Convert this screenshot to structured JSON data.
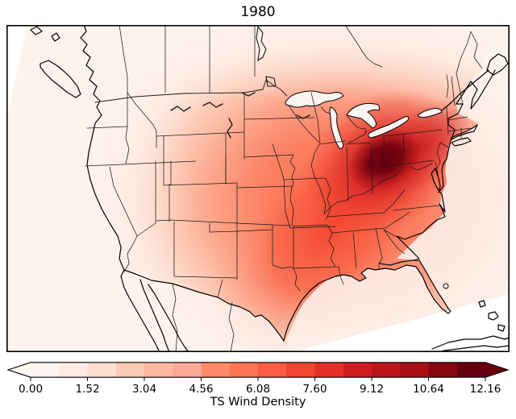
{
  "figure": {
    "title": "1980",
    "background": "#ffffff"
  },
  "colorbar": {
    "label": "TS Wind Density",
    "orientation": "horizontal",
    "extend": "both",
    "tick_labels": [
      "0.00",
      "1.52",
      "3.04",
      "4.56",
      "6.08",
      "7.60",
      "9.12",
      "10.64",
      "12.16"
    ],
    "under_color": "#fff5f0",
    "over_color": "#67000d",
    "segment_colors": [
      "#fff5f0",
      "#ffeae0",
      "#fedecf",
      "#fdcab5",
      "#fcb79f",
      "#fca896",
      "#fc8a6a",
      "#fb7555",
      "#f85d42",
      "#f14432",
      "#e32f27",
      "#d01d1f",
      "#bc141a",
      "#a81016",
      "#880811",
      "#67000d"
    ]
  },
  "chart_data": {
    "type": "heatmap",
    "subtype": "filled-contour-map",
    "title": "1980",
    "colorbar_label": "TS Wind Density",
    "colormap": "Reds",
    "extend": "both",
    "levels": {
      "min": 0.0,
      "max": 12.16,
      "step": 0.76,
      "bands": 16
    },
    "colorbar_ticks": [
      0.0,
      1.52,
      3.04,
      4.56,
      6.08,
      7.6,
      9.12,
      10.64,
      12.16
    ],
    "geography": "Contiguous United States with state boundaries, southern Canada, northern Mexico, Great Lakes, Cuba and Bahamas; conic projection",
    "peak": {
      "region": "Ohio near Lake Erie",
      "approx_density": 12.0
    },
    "regions": [
      {
        "region": "Ohio / Lake Erie shore (peak)",
        "approx_density": 12.0
      },
      {
        "region": "Western Pennsylvania",
        "approx_density": 10.5
      },
      {
        "region": "Indiana / Kentucky / West Virginia",
        "approx_density": 9.0
      },
      {
        "region": "Illinois / southern Michigan",
        "approx_density": 8.0
      },
      {
        "region": "New York / New Jersey / Maryland",
        "approx_density": 7.5
      },
      {
        "region": "Missouri / Tennessee / Virginia",
        "approx_density": 7.0
      },
      {
        "region": "Iowa / Oklahoma / Arkansas / east Texas",
        "approx_density": 6.0
      },
      {
        "region": "Kansas / Nebraska / Carolinas",
        "approx_density": 5.0
      },
      {
        "region": "Gulf coast (Louisiana / Mississippi / Alabama / Georgia)",
        "approx_density": 4.5
      },
      {
        "region": "Dakotas / central Texas",
        "approx_density": 3.0
      },
      {
        "region": "Florida peninsula",
        "approx_density": 3.0
      },
      {
        "region": "Rocky Mountains (Montana / Wyoming / Colorado / New Mexico)",
        "approx_density": 1.0
      },
      {
        "region": "Northern New England (Maine)",
        "approx_density": 0.6
      },
      {
        "region": "West coast / Mexico / open ocean",
        "approx_density": 0.2
      }
    ],
    "legend_position": "bottom colorbar",
    "grid": false
  }
}
